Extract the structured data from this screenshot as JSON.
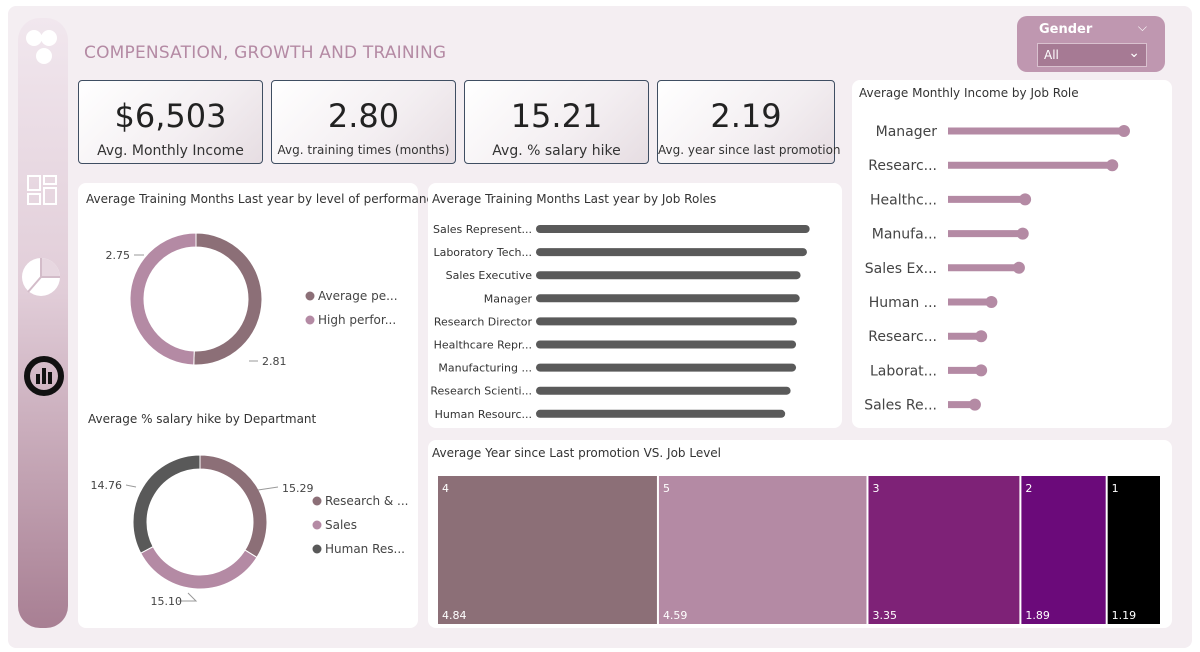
{
  "header": {
    "title": "COMPENSATION, GROWTH AND TRAINING"
  },
  "slicer": {
    "label": "Gender",
    "value": "All"
  },
  "kpis": [
    {
      "value": "$6,503",
      "label": "Avg. Monthly Income"
    },
    {
      "value": "2.80",
      "label": "Avg. training times (months)"
    },
    {
      "value": "15.21",
      "label": "Avg. % salary hike"
    },
    {
      "value": "2.19",
      "label": "Avg. year since last promotion"
    }
  ],
  "colors": {
    "mauve": "#b48aa4",
    "dark_mauve": "#8c6f77",
    "dark_gray": "#595959",
    "purple": "#7e2277",
    "deep_purple": "#6b0a7a"
  },
  "chart_data": [
    {
      "type": "pie",
      "title": "Average Training Months Last year by level of performance",
      "categories": [
        "Average pe...",
        "High perfor..."
      ],
      "values": [
        2.81,
        2.75
      ],
      "colors": [
        "#8c6f77",
        "#b48aa4"
      ]
    },
    {
      "type": "pie",
      "title": "Average % salary hike by Departmant",
      "categories": [
        "Research & ...",
        "Sales",
        "Human Res..."
      ],
      "values": [
        15.29,
        15.1,
        14.76
      ],
      "colors": [
        "#8c6f77",
        "#b48aa4",
        "#595959"
      ]
    },
    {
      "type": "bar",
      "title": "Average Training Months Last year by Job Roles",
      "categories": [
        "Sales Represent...",
        "Laboratory Tech...",
        "Sales Executive",
        "Manager",
        "Research Director",
        "Healthcare Repr...",
        "Manufacturing ...",
        "Research Scienti...",
        "Human Resourc..."
      ],
      "values": [
        2.93,
        2.9,
        2.83,
        2.82,
        2.79,
        2.78,
        2.78,
        2.72,
        2.66
      ],
      "xlim": [
        0,
        3.2
      ]
    },
    {
      "type": "bar",
      "title": "Average Monthly Income by Job Role",
      "categories": [
        "Manager",
        "Researc...",
        "Healthc...",
        "Manufa...",
        "Sales Ex...",
        "Human ...",
        "Researc...",
        "Laborat...",
        "Sales Re..."
      ],
      "values": [
        17182,
        16034,
        7529,
        7295,
        6924,
        4236,
        3240,
        3237,
        2626
      ],
      "xlim": [
        0,
        20000
      ]
    },
    {
      "type": "treemap",
      "title": "Average Year since Last promotion VS. Job Level",
      "categories": [
        "4",
        "5",
        "3",
        "2",
        "1"
      ],
      "values": [
        4.84,
        4.59,
        3.35,
        1.89,
        1.19
      ],
      "value_labels": [
        "4.84",
        "4.59",
        "3.35",
        "1.89",
        "1.19"
      ],
      "colors": [
        "#8c6f77",
        "#b48aa4",
        "#7e2277",
        "#6b0a7a",
        "#000000"
      ]
    }
  ]
}
